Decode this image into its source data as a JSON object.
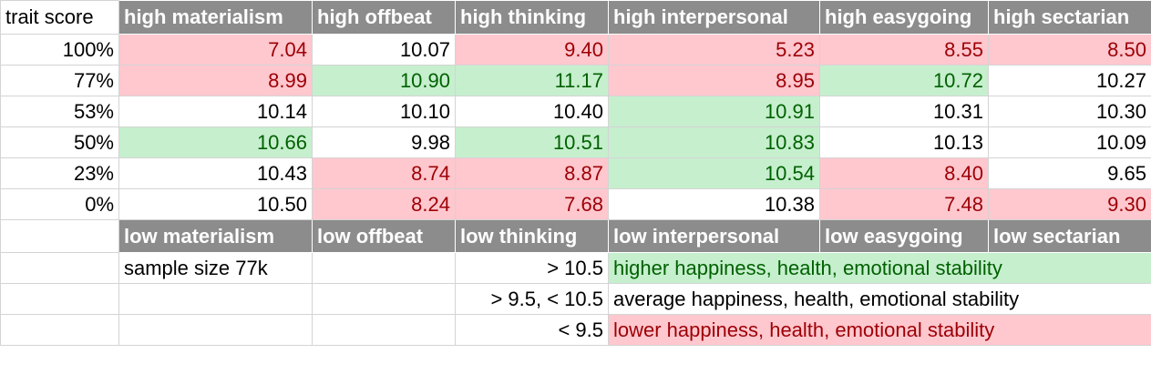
{
  "colors": {
    "header_bg": "#8c8c8c",
    "good_bg": "#c6efce",
    "good_text": "#006100",
    "bad_bg": "#ffc7ce",
    "bad_text": "#9c0006"
  },
  "corner_label": "trait score",
  "high_headers": [
    "high materialism",
    "high offbeat",
    "high thinking",
    "high interpersonal",
    "high easygoing",
    "high sectarian"
  ],
  "low_headers": [
    "low materialism",
    "low offbeat",
    "low thinking",
    "low interpersonal",
    "low easygoing",
    "low sectarian"
  ],
  "rows": [
    {
      "score": "100%",
      "cells": [
        {
          "v": "7.04",
          "s": "bad"
        },
        {
          "v": "10.07",
          "s": "plain"
        },
        {
          "v": "9.40",
          "s": "bad"
        },
        {
          "v": "5.23",
          "s": "bad"
        },
        {
          "v": "8.55",
          "s": "bad"
        },
        {
          "v": "8.50",
          "s": "bad"
        }
      ]
    },
    {
      "score": "77%",
      "cells": [
        {
          "v": "8.99",
          "s": "bad"
        },
        {
          "v": "10.90",
          "s": "good"
        },
        {
          "v": "11.17",
          "s": "good"
        },
        {
          "v": "8.95",
          "s": "bad"
        },
        {
          "v": "10.72",
          "s": "good"
        },
        {
          "v": "10.27",
          "s": "plain"
        }
      ]
    },
    {
      "score": "53%",
      "cells": [
        {
          "v": "10.14",
          "s": "plain"
        },
        {
          "v": "10.10",
          "s": "plain"
        },
        {
          "v": "10.40",
          "s": "plain"
        },
        {
          "v": "10.91",
          "s": "good"
        },
        {
          "v": "10.31",
          "s": "plain"
        },
        {
          "v": "10.30",
          "s": "plain"
        }
      ]
    },
    {
      "score": "50%",
      "cells": [
        {
          "v": "10.66",
          "s": "good"
        },
        {
          "v": "9.98",
          "s": "plain"
        },
        {
          "v": "10.51",
          "s": "good"
        },
        {
          "v": "10.83",
          "s": "good"
        },
        {
          "v": "10.13",
          "s": "plain"
        },
        {
          "v": "10.09",
          "s": "plain"
        }
      ]
    },
    {
      "score": "23%",
      "cells": [
        {
          "v": "10.43",
          "s": "plain"
        },
        {
          "v": "8.74",
          "s": "bad"
        },
        {
          "v": "8.87",
          "s": "bad"
        },
        {
          "v": "10.54",
          "s": "good"
        },
        {
          "v": "8.40",
          "s": "bad"
        },
        {
          "v": "9.65",
          "s": "plain"
        }
      ]
    },
    {
      "score": "0%",
      "cells": [
        {
          "v": "10.50",
          "s": "plain"
        },
        {
          "v": "8.24",
          "s": "bad"
        },
        {
          "v": "7.68",
          "s": "bad"
        },
        {
          "v": "10.38",
          "s": "plain"
        },
        {
          "v": "7.48",
          "s": "bad"
        },
        {
          "v": "9.30",
          "s": "bad"
        }
      ]
    }
  ],
  "footer": {
    "sample_size": "sample size 77k",
    "legend": [
      {
        "range": "> 10.5",
        "text": "higher happiness, health, emotional stability",
        "s": "good"
      },
      {
        "range": "> 9.5, < 10.5",
        "text": "average happiness, health, emotional stability",
        "s": "plain"
      },
      {
        "range": "< 9.5",
        "text": "lower happiness, health, emotional stability",
        "s": "bad"
      }
    ]
  }
}
